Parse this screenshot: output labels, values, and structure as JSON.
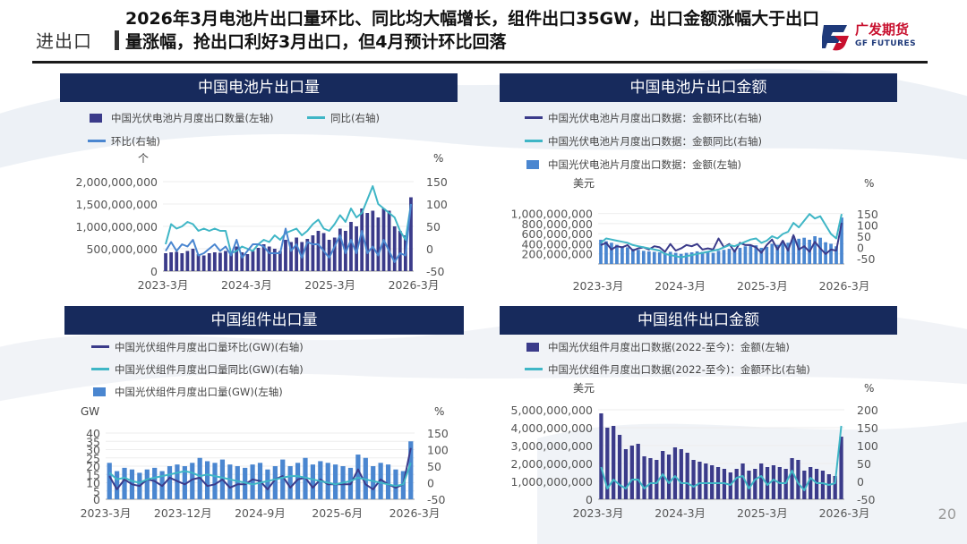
{
  "header": {
    "section": "进出口",
    "title": "2026年3月电池片出口量环比、同比均大幅增长，组件出口35GW，出口金额涨幅大于出口量涨幅，抢出口利好3月出口，但4月预计环比回落"
  },
  "logo": {
    "cn": "广发期货",
    "en": "GF FUTURES"
  },
  "page_number": "20",
  "colors": {
    "navy": "#3b3b8a",
    "cyan": "#3fb6c6",
    "blue": "#4a86d0",
    "bar_blue": "#4a86d0",
    "title_bg": "#172a5c"
  },
  "panels": [
    {
      "title": "中国电池片出口量"
    },
    {
      "title": "中国电池片出口金额"
    },
    {
      "title": "中国组件出口量"
    },
    {
      "title": "中国组件出口金额"
    }
  ],
  "chart_data": [
    {
      "type": "bar",
      "title": "中国电池片出口量",
      "left_unit": "个",
      "right_unit": "%",
      "ylim": [
        0,
        2000000000
      ],
      "y2lim": [
        -50,
        150
      ],
      "y_ticks": [
        "0",
        "500,000,000",
        "1,000,000,000",
        "1,500,000,000",
        "2,000,000,000"
      ],
      "y2_ticks": [
        "-50",
        "0",
        "50",
        "100",
        "150"
      ],
      "x_ticks": [
        "2023-3月",
        "2024-3月",
        "2025-3月",
        "2026-3月"
      ],
      "legend": [
        "中国光伏电池片月度出口数量(左轴)",
        "同比(右轴)",
        "环比(右轴)"
      ],
      "series": [
        {
          "name": "中国光伏电池片月度出口数量(左轴)",
          "kind": "bar",
          "axis": "left",
          "values": [
            400000000,
            420000000,
            430000000,
            400000000,
            450000000,
            500000000,
            380000000,
            350000000,
            400000000,
            420000000,
            410000000,
            450000000,
            400000000,
            550000000,
            420000000,
            380000000,
            450000000,
            520000000,
            600000000,
            550000000,
            500000000,
            450000000,
            700000000,
            650000000,
            750000000,
            650000000,
            720000000,
            800000000,
            900000000,
            850000000,
            700000000,
            750000000,
            950000000,
            900000000,
            1100000000,
            1000000000,
            1400000000,
            1300000000,
            1350000000,
            1200000000,
            1400000000,
            1350000000,
            1000000000,
            900000000,
            800000000,
            1650000000
          ]
        },
        {
          "name": "同比(右轴)",
          "kind": "line",
          "axis": "right",
          "values": [
            10,
            55,
            45,
            50,
            60,
            55,
            40,
            45,
            40,
            45,
            40,
            40,
            -10,
            -5,
            5,
            0,
            -5,
            10,
            20,
            15,
            30,
            20,
            35,
            40,
            45,
            30,
            40,
            55,
            65,
            45,
            40,
            55,
            75,
            60,
            90,
            70,
            80,
            110,
            140,
            100,
            90,
            80,
            70,
            40,
            20,
            100
          ]
        },
        {
          "name": "环比(右轴)",
          "kind": "line",
          "axis": "right",
          "values": [
            -5,
            15,
            -5,
            10,
            5,
            20,
            -15,
            -10,
            0,
            10,
            -5,
            5,
            -15,
            20,
            -20,
            -5,
            10,
            10,
            5,
            -10,
            -10,
            -10,
            45,
            -5,
            10,
            -20,
            15,
            10,
            10,
            -5,
            -20,
            5,
            30,
            -10,
            20,
            -10,
            40,
            -10,
            5,
            -15,
            20,
            -5,
            -30,
            -10,
            -15,
            100
          ]
        }
      ]
    },
    {
      "type": "bar",
      "title": "中国电池片出口金额",
      "left_unit": "美元",
      "right_unit": "%",
      "ylim": [
        0,
        1100000000
      ],
      "y2lim": [
        -75,
        175
      ],
      "y_ticks": [
        "200,000,000",
        "400,000,000",
        "600,000,000",
        "800,000,000",
        "1,000,000,000"
      ],
      "y2_ticks": [
        "-50",
        "0",
        "50",
        "100",
        "150"
      ],
      "x_ticks": [
        "2023-3月",
        "2024-3月",
        "2025-3月",
        "2026-3月"
      ],
      "legend": [
        "中国光伏电池片月度出口数据：金额环比(右轴)",
        "中国光伏电池片月度出口数据：金额同比(右轴)",
        "中国光伏电池片月度出口数据：金额(左轴)"
      ],
      "series": [
        {
          "name": "中国光伏电池片月度出口数据：金额(左轴)",
          "kind": "bar",
          "axis": "left",
          "values": [
            480000000,
            450000000,
            420000000,
            380000000,
            350000000,
            330000000,
            300000000,
            280000000,
            260000000,
            250000000,
            240000000,
            230000000,
            220000000,
            240000000,
            220000000,
            200000000,
            220000000,
            230000000,
            250000000,
            240000000,
            230000000,
            220000000,
            260000000,
            280000000,
            300000000,
            290000000,
            320000000,
            350000000,
            380000000,
            370000000,
            320000000,
            340000000,
            400000000,
            380000000,
            450000000,
            420000000,
            550000000,
            500000000,
            520000000,
            480000000,
            550000000,
            520000000,
            430000000,
            400000000,
            350000000,
            920000000
          ]
        },
        {
          "name": "中国光伏电池片月度出口数据：金额环比(右轴)",
          "kind": "line",
          "axis": "right",
          "values": [
            10,
            20,
            -10,
            5,
            0,
            10,
            -15,
            -5,
            0,
            -10,
            5,
            0,
            -20,
            15,
            -15,
            -5,
            10,
            5,
            15,
            -10,
            -5,
            -10,
            40,
            0,
            15,
            -20,
            20,
            10,
            10,
            0,
            -25,
            10,
            35,
            -10,
            30,
            -15,
            55,
            -10,
            5,
            -20,
            25,
            -5,
            -30,
            -10,
            -15,
            110
          ]
        },
        {
          "name": "中国光伏电池片月度出口数据：金额同比(右轴)",
          "kind": "line",
          "axis": "right",
          "values": [
            20,
            40,
            35,
            30,
            25,
            20,
            10,
            5,
            0,
            -5,
            -10,
            -15,
            -30,
            -35,
            -40,
            -45,
            -40,
            -35,
            -30,
            -25,
            -20,
            -15,
            -10,
            0,
            10,
            5,
            15,
            25,
            35,
            40,
            20,
            30,
            50,
            40,
            60,
            70,
            110,
            90,
            120,
            150,
            130,
            140,
            100,
            60,
            40,
            150
          ]
        }
      ]
    },
    {
      "type": "bar",
      "title": "中国组件出口量",
      "left_unit": "GW",
      "right_unit": "%",
      "ylim": [
        0,
        40
      ],
      "y2lim": [
        -50,
        150
      ],
      "y_ticks": [
        "0",
        "5",
        "10",
        "15",
        "20",
        "25",
        "30",
        "35",
        "40"
      ],
      "y2_ticks": [
        "-50",
        "0",
        "50",
        "100",
        "150"
      ],
      "x_ticks": [
        "2023-3月",
        "2023-12月",
        "2024-9月",
        "2025-6月",
        "2026-3月"
      ],
      "legend": [
        "中国光伏组件月度出口量环比(GW)(右轴)",
        "中国光伏组件月度出口量同比(GW)(右轴)",
        "中国光伏组件月度出口量(GW)(左轴)"
      ],
      "series": [
        {
          "name": "中国光伏组件月度出口量(GW)(左轴)",
          "kind": "bar",
          "axis": "left",
          "values": [
            22,
            17,
            19,
            18,
            16,
            18,
            19,
            17,
            20,
            21,
            20,
            22,
            25,
            23,
            22,
            24,
            21,
            20,
            19,
            21,
            22,
            18,
            20,
            24,
            20,
            22,
            25,
            21,
            23,
            22,
            21,
            20,
            19,
            27,
            25,
            20,
            22,
            21,
            18,
            17,
            35
          ]
        },
        {
          "name": "中国光伏组件月度出口量环比(GW)(右轴)",
          "kind": "line",
          "axis": "right",
          "values": [
            20,
            -20,
            10,
            -5,
            -10,
            10,
            5,
            -10,
            15,
            5,
            -5,
            10,
            15,
            -10,
            -5,
            10,
            -15,
            -5,
            -5,
            10,
            5,
            -20,
            10,
            20,
            -15,
            10,
            15,
            -15,
            10,
            -5,
            -5,
            -5,
            -5,
            40,
            -5,
            -20,
            10,
            -5,
            -15,
            -5,
            105
          ]
        },
        {
          "name": "中国光伏组件月度出口量同比(GW)(右轴)",
          "kind": "line",
          "axis": "right",
          "values": [
            30,
            10,
            15,
            5,
            0,
            10,
            15,
            20,
            25,
            30,
            35,
            30,
            20,
            25,
            20,
            15,
            10,
            5,
            0,
            -5,
            0,
            5,
            10,
            15,
            20,
            20,
            15,
            10,
            5,
            0,
            -5,
            0,
            5,
            15,
            10,
            5,
            0,
            -5,
            -10,
            -5,
            60
          ]
        }
      ]
    },
    {
      "type": "bar",
      "title": "中国组件出口金额",
      "left_unit": "美元",
      "right_unit": "%",
      "ylim": [
        0,
        5000000000
      ],
      "y2lim": [
        -50,
        200
      ],
      "y_ticks": [
        "0",
        "1,000,000,000",
        "2,000,000,000",
        "3,000,000,000",
        "4,000,000,000",
        "5,000,000,000"
      ],
      "y2_ticks": [
        "-50",
        "0",
        "50",
        "100",
        "150",
        "200"
      ],
      "x_ticks": [
        "2023-3月",
        "2024-3月",
        "2025-3月",
        "2026-3月"
      ],
      "legend": [
        "中国光伏组件月度出口数据(2022-至今)：金额(左轴)",
        "中国光伏组件月度出口数据(2022-至今)：金额环比(右轴)"
      ],
      "series": [
        {
          "name": "中国光伏组件月度出口数据(2022-至今)：金额(左轴)",
          "kind": "bar",
          "axis": "left",
          "values": [
            4800000000,
            4000000000,
            4100000000,
            3600000000,
            2800000000,
            3000000000,
            3100000000,
            2400000000,
            2300000000,
            2200000000,
            2700000000,
            2500000000,
            2900000000,
            2800000000,
            2600000000,
            2200000000,
            2100000000,
            2000000000,
            1900000000,
            1800000000,
            1700000000,
            1500000000,
            1700000000,
            2000000000,
            1600000000,
            1700000000,
            2000000000,
            1800000000,
            1900000000,
            1800000000,
            1700000000,
            2300000000,
            2200000000,
            1600000000,
            1800000000,
            1700000000,
            1600000000,
            1400000000,
            1300000000,
            3500000000
          ]
        },
        {
          "name": "中国光伏组件月度出口数据(2022-至今)：金额环比(右轴)",
          "kind": "line",
          "axis": "right",
          "values": [
            40,
            -20,
            5,
            -10,
            -20,
            5,
            5,
            -20,
            -5,
            -5,
            20,
            -5,
            15,
            -5,
            -5,
            -15,
            -5,
            -5,
            -5,
            -5,
            -5,
            -10,
            10,
            15,
            -20,
            5,
            15,
            -10,
            5,
            -5,
            -5,
            30,
            -5,
            -25,
            10,
            -5,
            -5,
            -10,
            -5,
            155
          ]
        }
      ]
    }
  ]
}
